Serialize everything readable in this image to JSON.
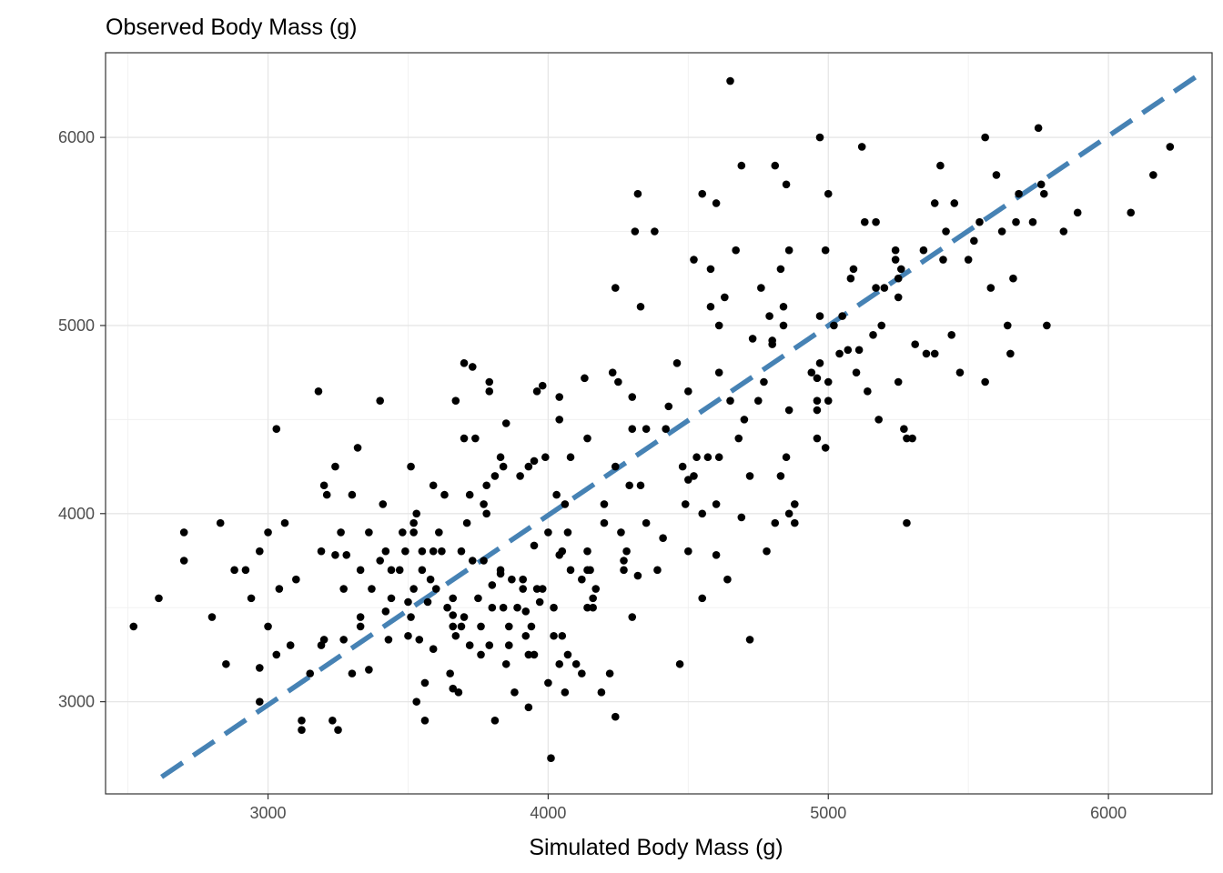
{
  "chart_data": {
    "type": "scatter",
    "title": "Observed Body Mass (g)",
    "xlabel": "Simulated Body Mass (g)",
    "ylabel": "",
    "xlim": [
      2420,
      6370
    ],
    "ylim": [
      2510,
      6450
    ],
    "x_ticks": [
      3000,
      4000,
      5000,
      6000
    ],
    "y_ticks": [
      3000,
      4000,
      5000,
      6000
    ],
    "x_tick_labels": [
      "3000",
      "4000",
      "5000",
      "6000"
    ],
    "y_tick_labels": [
      "3000",
      "4000",
      "5000",
      "6000"
    ],
    "grid": true,
    "point_color": "#000000",
    "reference_line": {
      "style": "dashed",
      "color": "#4682b4",
      "x": [
        2620,
        6320
      ],
      "y": [
        2600,
        6330
      ]
    },
    "points": [
      [
        2520,
        3400
      ],
      [
        2610,
        3550
      ],
      [
        2700,
        3900
      ],
      [
        2700,
        3750
      ],
      [
        2800,
        3450
      ],
      [
        2830,
        3950
      ],
      [
        2850,
        3200
      ],
      [
        2880,
        3700
      ],
      [
        2920,
        3700
      ],
      [
        2940,
        3550
      ],
      [
        2970,
        3000
      ],
      [
        2970,
        3180
      ],
      [
        2970,
        3800
      ],
      [
        3000,
        3400
      ],
      [
        3000,
        3900
      ],
      [
        3030,
        3250
      ],
      [
        3030,
        4450
      ],
      [
        3040,
        3600
      ],
      [
        3060,
        3950
      ],
      [
        3080,
        3300
      ],
      [
        3100,
        3650
      ],
      [
        3120,
        2850
      ],
      [
        3120,
        2900
      ],
      [
        3150,
        3150
      ],
      [
        3180,
        4650
      ],
      [
        3190,
        3300
      ],
      [
        3190,
        3800
      ],
      [
        3200,
        4150
      ],
      [
        3200,
        3330
      ],
      [
        3210,
        4100
      ],
      [
        3230,
        2900
      ],
      [
        3240,
        3780
      ],
      [
        3240,
        4250
      ],
      [
        3250,
        2850
      ],
      [
        3260,
        3900
      ],
      [
        3270,
        3600
      ],
      [
        3270,
        3330
      ],
      [
        3280,
        3780
      ],
      [
        3300,
        4100
      ],
      [
        3300,
        3150
      ],
      [
        3320,
        4350
      ],
      [
        3330,
        3700
      ],
      [
        3330,
        3450
      ],
      [
        3330,
        3400
      ],
      [
        3360,
        3170
      ],
      [
        3360,
        3900
      ],
      [
        3370,
        3600
      ],
      [
        3400,
        4600
      ],
      [
        3400,
        3750
      ],
      [
        3410,
        4050
      ],
      [
        3420,
        3800
      ],
      [
        3420,
        3480
      ],
      [
        3430,
        3330
      ],
      [
        3440,
        3700
      ],
      [
        3440,
        3550
      ],
      [
        3470,
        3700
      ],
      [
        3480,
        3900
      ],
      [
        3490,
        3800
      ],
      [
        3500,
        3350
      ],
      [
        3500,
        3530
      ],
      [
        3510,
        4250
      ],
      [
        3510,
        3450
      ],
      [
        3520,
        3600
      ],
      [
        3520,
        3900
      ],
      [
        3520,
        3950
      ],
      [
        3530,
        4000
      ],
      [
        3530,
        3000
      ],
      [
        3540,
        3330
      ],
      [
        3550,
        3700
      ],
      [
        3550,
        3800
      ],
      [
        3560,
        3100
      ],
      [
        3560,
        2900
      ],
      [
        3570,
        3530
      ],
      [
        3580,
        3650
      ],
      [
        3590,
        3800
      ],
      [
        3590,
        4150
      ],
      [
        3590,
        3280
      ],
      [
        3600,
        3600
      ],
      [
        3610,
        3900
      ],
      [
        3620,
        3800
      ],
      [
        3630,
        4100
      ],
      [
        3640,
        3500
      ],
      [
        3650,
        3150
      ],
      [
        3660,
        3400
      ],
      [
        3660,
        3550
      ],
      [
        3660,
        3460
      ],
      [
        3660,
        3070
      ],
      [
        3670,
        4600
      ],
      [
        3670,
        3350
      ],
      [
        3680,
        3050
      ],
      [
        3690,
        3800
      ],
      [
        3690,
        3400
      ],
      [
        3700,
        4800
      ],
      [
        3700,
        3450
      ],
      [
        3700,
        4400
      ],
      [
        3710,
        3950
      ],
      [
        3720,
        3300
      ],
      [
        3720,
        4100
      ],
      [
        3730,
        3750
      ],
      [
        3730,
        4780
      ],
      [
        3740,
        4400
      ],
      [
        3750,
        3550
      ],
      [
        3760,
        3250
      ],
      [
        3760,
        3400
      ],
      [
        3770,
        3750
      ],
      [
        3770,
        4050
      ],
      [
        3780,
        4000
      ],
      [
        3780,
        4150
      ],
      [
        3790,
        4650
      ],
      [
        3790,
        4700
      ],
      [
        3790,
        3300
      ],
      [
        3800,
        3500
      ],
      [
        3800,
        3620
      ],
      [
        3810,
        2900
      ],
      [
        3810,
        4200
      ],
      [
        3830,
        3700
      ],
      [
        3830,
        3680
      ],
      [
        3830,
        4300
      ],
      [
        3840,
        4250
      ],
      [
        3840,
        3500
      ],
      [
        3850,
        4480
      ],
      [
        3850,
        3200
      ],
      [
        3860,
        3300
      ],
      [
        3860,
        3400
      ],
      [
        3870,
        3650
      ],
      [
        3880,
        3050
      ],
      [
        3890,
        3500
      ],
      [
        3900,
        4200
      ],
      [
        3910,
        3600
      ],
      [
        3910,
        3650
      ],
      [
        3920,
        3350
      ],
      [
        3920,
        3480
      ],
      [
        3930,
        4250
      ],
      [
        3930,
        3250
      ],
      [
        3930,
        2970
      ],
      [
        3940,
        3400
      ],
      [
        3950,
        3250
      ],
      [
        3950,
        3830
      ],
      [
        3950,
        4280
      ],
      [
        3960,
        3600
      ],
      [
        3960,
        4650
      ],
      [
        3970,
        3530
      ],
      [
        3980,
        4680
      ],
      [
        3980,
        3600
      ],
      [
        3990,
        4300
      ],
      [
        4000,
        3100
      ],
      [
        4000,
        3900
      ],
      [
        4010,
        2700
      ],
      [
        4020,
        3350
      ],
      [
        4020,
        3500
      ],
      [
        4030,
        4100
      ],
      [
        4040,
        4620
      ],
      [
        4040,
        4500
      ],
      [
        4040,
        3780
      ],
      [
        4040,
        3200
      ],
      [
        4050,
        3350
      ],
      [
        4050,
        3800
      ],
      [
        4060,
        3050
      ],
      [
        4060,
        4050
      ],
      [
        4070,
        3250
      ],
      [
        4070,
        3900
      ],
      [
        4080,
        3700
      ],
      [
        4080,
        4300
      ],
      [
        4100,
        3200
      ],
      [
        4120,
        3650
      ],
      [
        4120,
        3150
      ],
      [
        4130,
        4720
      ],
      [
        4140,
        4400
      ],
      [
        4140,
        3500
      ],
      [
        4140,
        3700
      ],
      [
        4140,
        3800
      ],
      [
        4150,
        3700
      ],
      [
        4160,
        3550
      ],
      [
        4160,
        3500
      ],
      [
        4170,
        3600
      ],
      [
        4190,
        3050
      ],
      [
        4200,
        3950
      ],
      [
        4200,
        4050
      ],
      [
        4220,
        3150
      ],
      [
        4230,
        4750
      ],
      [
        4240,
        5200
      ],
      [
        4240,
        2920
      ],
      [
        4240,
        4250
      ],
      [
        4250,
        4700
      ],
      [
        4260,
        3900
      ],
      [
        4270,
        3750
      ],
      [
        4270,
        3700
      ],
      [
        4280,
        3800
      ],
      [
        4290,
        4150
      ],
      [
        4300,
        4450
      ],
      [
        4300,
        4620
      ],
      [
        4300,
        3450
      ],
      [
        4310,
        5500
      ],
      [
        4320,
        5700
      ],
      [
        4320,
        3670
      ],
      [
        4330,
        5100
      ],
      [
        4330,
        4150
      ],
      [
        4350,
        4450
      ],
      [
        4350,
        3950
      ],
      [
        4380,
        5500
      ],
      [
        4390,
        3700
      ],
      [
        4410,
        3870
      ],
      [
        4420,
        4450
      ],
      [
        4430,
        4570
      ],
      [
        4460,
        4800
      ],
      [
        4470,
        3200
      ],
      [
        4480,
        4250
      ],
      [
        4490,
        4050
      ],
      [
        4500,
        4650
      ],
      [
        4500,
        4180
      ],
      [
        4500,
        3800
      ],
      [
        4520,
        4200
      ],
      [
        4520,
        5350
      ],
      [
        4530,
        4300
      ],
      [
        4550,
        5700
      ],
      [
        4550,
        4000
      ],
      [
        4550,
        3550
      ],
      [
        4570,
        4300
      ],
      [
        4580,
        5100
      ],
      [
        4580,
        5300
      ],
      [
        4600,
        5650
      ],
      [
        4600,
        3780
      ],
      [
        4600,
        4050
      ],
      [
        4610,
        4750
      ],
      [
        4610,
        4300
      ],
      [
        4610,
        5000
      ],
      [
        4630,
        5150
      ],
      [
        4640,
        3650
      ],
      [
        4650,
        6300
      ],
      [
        4650,
        4600
      ],
      [
        4670,
        5400
      ],
      [
        4680,
        4400
      ],
      [
        4690,
        5850
      ],
      [
        4690,
        3980
      ],
      [
        4700,
        4500
      ],
      [
        4720,
        4200
      ],
      [
        4720,
        3330
      ],
      [
        4730,
        4930
      ],
      [
        4750,
        4600
      ],
      [
        4760,
        5200
      ],
      [
        4770,
        4700
      ],
      [
        4780,
        3800
      ],
      [
        4790,
        5050
      ],
      [
        4800,
        4920
      ],
      [
        4800,
        4900
      ],
      [
        4810,
        5850
      ],
      [
        4810,
        3950
      ],
      [
        4830,
        5300
      ],
      [
        4830,
        4200
      ],
      [
        4840,
        5000
      ],
      [
        4840,
        5100
      ],
      [
        4850,
        5750
      ],
      [
        4850,
        4300
      ],
      [
        4860,
        4000
      ],
      [
        4860,
        5400
      ],
      [
        4860,
        4550
      ],
      [
        4880,
        4050
      ],
      [
        4880,
        3950
      ],
      [
        4940,
        4750
      ],
      [
        4960,
        4550
      ],
      [
        4960,
        4400
      ],
      [
        4960,
        4600
      ],
      [
        4960,
        4720
      ],
      [
        4970,
        6000
      ],
      [
        4970,
        5050
      ],
      [
        4970,
        4800
      ],
      [
        4990,
        5400
      ],
      [
        4990,
        4350
      ],
      [
        5000,
        4700
      ],
      [
        5000,
        4600
      ],
      [
        5000,
        5700
      ],
      [
        5020,
        5000
      ],
      [
        5040,
        4850
      ],
      [
        5050,
        5050
      ],
      [
        5070,
        4870
      ],
      [
        5080,
        5250
      ],
      [
        5090,
        5300
      ],
      [
        5100,
        4750
      ],
      [
        5110,
        4870
      ],
      [
        5120,
        5950
      ],
      [
        5130,
        5550
      ],
      [
        5140,
        4650
      ],
      [
        5160,
        4950
      ],
      [
        5170,
        5200
      ],
      [
        5170,
        5550
      ],
      [
        5180,
        4500
      ],
      [
        5190,
        5000
      ],
      [
        5200,
        5200
      ],
      [
        5240,
        5350
      ],
      [
        5240,
        5400
      ],
      [
        5250,
        5250
      ],
      [
        5250,
        4700
      ],
      [
        5250,
        5150
      ],
      [
        5260,
        5300
      ],
      [
        5270,
        4450
      ],
      [
        5280,
        4400
      ],
      [
        5280,
        3950
      ],
      [
        5300,
        4400
      ],
      [
        5310,
        4900
      ],
      [
        5340,
        5400
      ],
      [
        5350,
        4850
      ],
      [
        5380,
        5650
      ],
      [
        5380,
        4850
      ],
      [
        5400,
        5850
      ],
      [
        5410,
        5350
      ],
      [
        5420,
        5500
      ],
      [
        5440,
        4950
      ],
      [
        5450,
        5650
      ],
      [
        5470,
        4750
      ],
      [
        5500,
        5350
      ],
      [
        5520,
        5450
      ],
      [
        5540,
        5550
      ],
      [
        5560,
        4700
      ],
      [
        5560,
        6000
      ],
      [
        5580,
        5200
      ],
      [
        5600,
        5800
      ],
      [
        5620,
        5500
      ],
      [
        5640,
        5000
      ],
      [
        5650,
        4850
      ],
      [
        5660,
        5250
      ],
      [
        5670,
        5550
      ],
      [
        5680,
        5700
      ],
      [
        5730,
        5550
      ],
      [
        5750,
        6050
      ],
      [
        5760,
        5750
      ],
      [
        5770,
        5700
      ],
      [
        5780,
        5000
      ],
      [
        5840,
        5500
      ],
      [
        5890,
        5600
      ],
      [
        6080,
        5600
      ],
      [
        6160,
        5800
      ],
      [
        6220,
        5950
      ]
    ]
  }
}
